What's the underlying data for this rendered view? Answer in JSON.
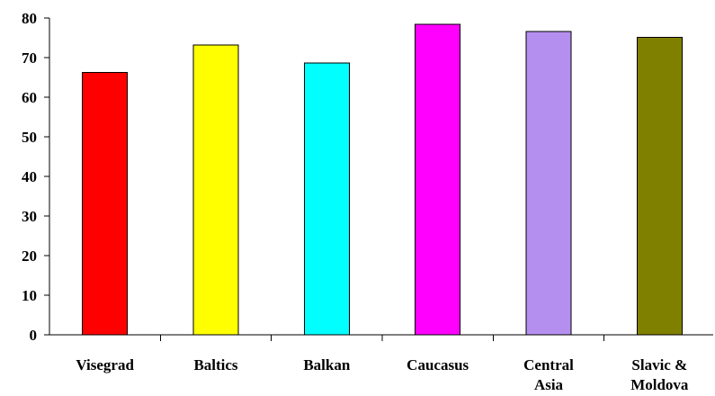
{
  "chart_data": {
    "type": "bar",
    "title": "",
    "xlabel": "",
    "ylabel": "",
    "categories": [
      "Visegrad",
      "Baltics",
      "Balkan",
      "Caucasus",
      "Central Asia",
      "Slavic & Moldova"
    ],
    "category_label_lines": [
      [
        "Visegrad"
      ],
      [
        "Baltics"
      ],
      [
        "Balkan"
      ],
      [
        "Caucasus"
      ],
      [
        "Central",
        "Asia"
      ],
      [
        "Slavic &",
        "Moldova"
      ]
    ],
    "values": [
      66.2,
      73.2,
      68.6,
      78.4,
      76.6,
      75.1
    ],
    "colors": [
      "#ff0000",
      "#ffff00",
      "#00ffff",
      "#ff00ff",
      "#b58fef",
      "#808000"
    ],
    "ylim": [
      0,
      80
    ],
    "yticks": [
      0,
      10,
      20,
      30,
      40,
      50,
      60,
      70,
      80
    ],
    "grid": false,
    "legend": false
  }
}
